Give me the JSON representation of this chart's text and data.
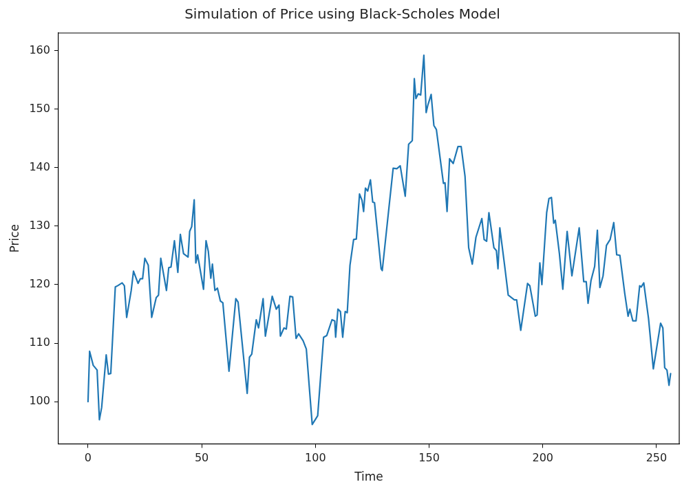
{
  "chart_data": {
    "type": "line",
    "title": "Simulation of Price using Black-Scholes Model",
    "xlabel": "Time",
    "ylabel": "Price",
    "x": [
      0,
      0.7,
      2.3,
      4,
      5,
      6,
      8,
      9,
      10,
      12,
      13,
      15,
      16,
      17,
      19,
      20,
      22,
      23,
      24,
      25,
      26.5,
      28,
      30,
      31,
      32,
      34.5,
      35.5,
      36.5,
      38,
      39.5,
      40.6,
      42,
      44,
      44.7,
      45.6,
      46.7,
      47.4,
      48.2,
      50.8,
      51.9,
      52.9,
      54,
      54.7,
      55.8,
      56.9,
      58.2,
      59.3,
      62,
      65,
      66,
      70,
      71,
      72,
      74,
      75,
      77,
      78,
      81,
      82.8,
      84,
      84.6,
      86.2,
      87.2,
      88.8,
      90,
      91.5,
      92.6,
      94.6,
      96,
      98.6,
      101,
      103.6,
      105,
      107.3,
      108.5,
      108.9,
      109.9,
      111,
      112,
      113.1,
      114,
      115.2,
      116.8,
      118,
      119.4,
      120.5,
      121.2,
      122,
      123,
      124.2,
      125.2,
      126,
      128.9,
      129.4,
      132.6,
      134.2,
      135.8,
      137.3,
      139.5,
      141,
      142.6,
      143.5,
      144.2,
      145.2,
      146.3,
      147.7,
      148.7,
      149.4,
      150.9,
      152.1,
      153.2,
      156.3,
      157,
      157.9,
      159,
      160.6,
      162.7,
      164.1,
      165.8,
      167.4,
      169,
      170.6,
      173.2,
      174.2,
      175.3,
      176.3,
      178.5,
      179.6,
      180.3,
      181.1,
      183.2,
      184.8,
      187.5,
      188.5,
      190.3,
      193.3,
      194.3,
      196.7,
      197.5,
      198.7,
      199.6,
      201.7,
      202.7,
      203.8,
      204.8,
      205.5,
      207.3,
      208.8,
      210.7,
      212.8,
      216,
      218,
      219.1,
      219.9,
      221.2,
      222.8,
      224,
      225.1,
      226.5,
      228,
      229.6,
      231.2,
      232.5,
      233.9,
      236,
      237.5,
      238.3,
      239.6,
      241,
      242.6,
      243.3,
      244.4,
      246.5,
      248.6,
      251.8,
      252.8,
      253.6,
      254.6,
      255.5,
      256.2
    ],
    "series": [
      {
        "color": "#1f77b4",
        "values": [
          100,
          108.6,
          106.2,
          105.4,
          96.9,
          99,
          108,
          104.7,
          104.8,
          119.6,
          119.8,
          120.3,
          119.8,
          114.4,
          119,
          122.3,
          120.2,
          121,
          121,
          124.5,
          123.3,
          114.4,
          117.8,
          118.2,
          124.5,
          119,
          122.9,
          123,
          127.5,
          122.1,
          128.6,
          125.3,
          124.7,
          129.1,
          129.9,
          134.5,
          123.7,
          125.1,
          119.2,
          127.5,
          125.7,
          121.1,
          123.5,
          119,
          119.4,
          117.2,
          116.9,
          105.2,
          117.6,
          117,
          101.4,
          107.6,
          108.1,
          114,
          112.6,
          117.6,
          111.2,
          118,
          115.8,
          116.5,
          111.2,
          112.6,
          112.4,
          118,
          117.9,
          110.8,
          111.6,
          110.4,
          109,
          96.1,
          97.6,
          111,
          111.3,
          114,
          113.8,
          111,
          115.8,
          115.4,
          111,
          115.4,
          115.2,
          123.3,
          127.7,
          127.8,
          135.5,
          134.4,
          132.5,
          136.5,
          136,
          137.9,
          134.1,
          134,
          122.7,
          122.4,
          134.1,
          139.9,
          139.8,
          140.3,
          135.1,
          144,
          144.6,
          155.2,
          151.8,
          152.6,
          152.4,
          159.2,
          149.4,
          150.6,
          152.5,
          147.2,
          146.5,
          137.3,
          137.4,
          132.5,
          141.5,
          140.7,
          143.6,
          143.6,
          138.5,
          126.3,
          123.5,
          128.1,
          131.3,
          127.7,
          127.4,
          132.3,
          126.3,
          125.8,
          122.7,
          129.7,
          123.3,
          118.2,
          117.4,
          117.4,
          112.2,
          120.2,
          119.8,
          114.6,
          114.8,
          123.7,
          120,
          132.3,
          134.7,
          134.9,
          130.5,
          131,
          125.3,
          119.2,
          129.1,
          121.5,
          129.7,
          120.5,
          120.5,
          116.8,
          120.7,
          123.1,
          129.3,
          119.5,
          121.5,
          126.7,
          127.7,
          130.6,
          125.1,
          125,
          118.6,
          114.6,
          115.8,
          113.8,
          113.8,
          119.8,
          119.6,
          120.3,
          114.2,
          105.6,
          113.4,
          112.6,
          105.8,
          105.4,
          102.8,
          104.8
        ]
      }
    ],
    "xlim": [
      -13,
      260
    ],
    "ylim": [
      92.8,
      163
    ],
    "xticks": [
      0,
      50,
      100,
      150,
      200,
      250
    ],
    "yticks": [
      100,
      110,
      120,
      130,
      140,
      150,
      160
    ],
    "grid": false,
    "legend": false,
    "marker": "none",
    "line_style": "solid"
  }
}
